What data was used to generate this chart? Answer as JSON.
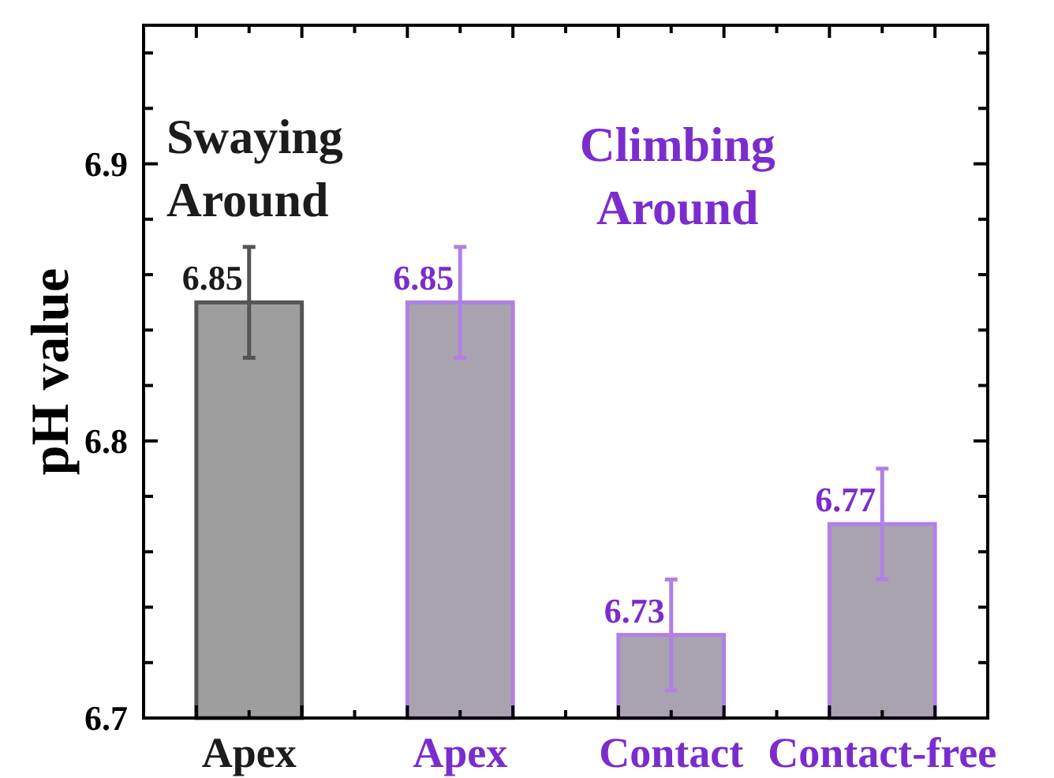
{
  "chart_data": {
    "type": "bar",
    "categories": [
      "Apex",
      "Apex",
      "Contact",
      "Contact-free"
    ],
    "values": [
      6.85,
      6.85,
      6.73,
      6.77
    ],
    "errors": [
      0.02,
      0.02,
      0.02,
      0.02
    ],
    "colors": [
      "#555555",
      "#b180e4",
      "#b180e4",
      "#b180e4"
    ],
    "ylabel": "pH value",
    "ylim": [
      6.7,
      6.95
    ],
    "yticks": [
      6.7,
      {
        "value": 6.72,
        "label": null
      },
      {
        "value": 6.74,
        "label": null
      },
      {
        "value": 6.76,
        "label": null
      },
      {
        "value": 6.78,
        "label": null
      },
      6.8,
      {
        "value": 6.82,
        "label": null
      },
      {
        "value": 6.84,
        "label": null
      },
      {
        "value": 6.86,
        "label": null
      },
      {
        "value": 6.88,
        "label": null
      },
      6.9,
      {
        "value": 6.92,
        "label": null
      },
      {
        "value": 6.94,
        "label": null
      }
    ],
    "data_labels": true,
    "annotations": [
      "Swaying Around",
      "Climbing Around"
    ]
  }
}
